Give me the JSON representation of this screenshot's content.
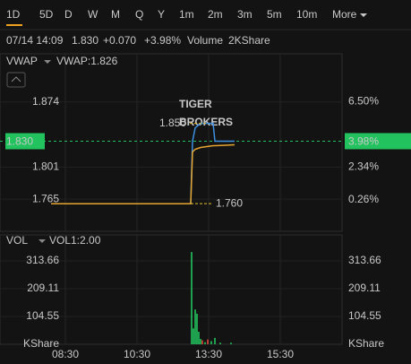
{
  "toolbar": {
    "tabs": [
      "1D",
      "5D",
      "D",
      "W",
      "M",
      "Q",
      "Y",
      "1m",
      "2m",
      "3m",
      "5m",
      "10m",
      "More"
    ],
    "active": 0
  },
  "quote": {
    "time": "07/14 14:09",
    "price": "1.830",
    "change": "+0.070",
    "change_pct": "+3.98%",
    "volume_label": "Volume",
    "volume": "2KShare"
  },
  "chart_data": [
    {
      "type": "line",
      "indicator": "VWAP",
      "indicator_value": "VWAP:1.826",
      "watermark": [
        "TIGER",
        "BROKERS"
      ],
      "x": [
        -24,
        210,
        213,
        217.5,
        226.5,
        247.5,
        250.5,
        283.5
      ],
      "xlim": [
        -109.5,
        463.5
      ],
      "ylim": [
        1.729,
        1.928
      ],
      "yticks": [
        1.874,
        1.801,
        1.765
      ],
      "y2lim": [
        -1.761,
        9.545
      ],
      "y2ticks": [
        {
          "value": 6.5,
          "label": "6.50%"
        },
        {
          "value": 2.34,
          "label": "2.34%"
        },
        {
          "value": 0.26,
          "label": "0.26%"
        }
      ],
      "series": [
        {
          "color": "#3d8fe0",
          "values": [
            1.76,
            1.76,
            1.83,
            1.845,
            1.85,
            1.85,
            1.83,
            1.83
          ]
        },
        {
          "name": "VWAP",
          "color": "#e5a530",
          "values": [
            1.76,
            1.76,
            1.818,
            1.821,
            1.823,
            1.825,
            1.825,
            1.826
          ]
        }
      ],
      "annotations": [
        {
          "x": 235.5,
          "value": 1.85,
          "label": "1.850"
        },
        {
          "x": 210,
          "value": 1.76,
          "label": "1.760"
        }
      ],
      "current": {
        "value": 1.83,
        "label": "1.830"
      },
      "current_pct": {
        "value": 3.98,
        "label": "3.98%"
      }
    },
    {
      "type": "bar",
      "indicator": "VOL",
      "indicator_value": "VOL1:2.00",
      "unit": "KShare",
      "x": [
        211.5,
        214.5,
        217.5,
        220.5,
        223.5,
        226.5,
        229.5,
        234,
        238.5,
        244.5,
        250.5,
        259.5,
        277.5
      ],
      "values": [
        347,
        60,
        131,
        115,
        47,
        20,
        15,
        8,
        18,
        12,
        24,
        6,
        6
      ],
      "colors": [
        "#22c35e",
        "#22c35e",
        "#22c35e",
        "#22c35e",
        "#22c35e",
        "#22c35e",
        "#e0453a",
        "#22c35e",
        "#e0453a",
        "#22c35e",
        "#22c35e",
        "#22c35e",
        "#22c35e"
      ],
      "xlim": [
        -109.5,
        463.5
      ],
      "ylim": [
        0,
        411.5
      ],
      "yticks": [
        313.66,
        209.11,
        104.55
      ],
      "xticks": [
        {
          "value": 0,
          "label": "08:30"
        },
        {
          "value": 120,
          "label": "10:30"
        },
        {
          "value": 240,
          "label": "13:30"
        },
        {
          "value": 360,
          "label": "15:30"
        }
      ]
    }
  ]
}
